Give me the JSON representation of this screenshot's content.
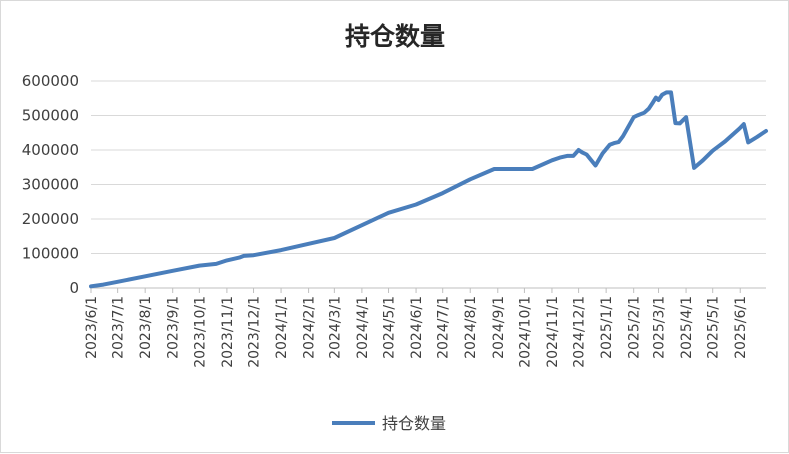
{
  "chart_data": {
    "type": "line",
    "title": "持仓数量",
    "xlabel": "",
    "ylabel": "",
    "ylim": [
      0,
      600000
    ],
    "yticks": [
      0,
      100000,
      200000,
      300000,
      400000,
      500000,
      600000
    ],
    "ytick_labels": [
      "0",
      "100000",
      "200000",
      "300000",
      "400000",
      "500000",
      "600000"
    ],
    "xtick_labels": [
      "2023/6/1",
      "2023/7/1",
      "2023/8/1",
      "2023/9/1",
      "2023/10/1",
      "2023/11/1",
      "2023/12/1",
      "2024/1/1",
      "2024/2/1",
      "2024/3/1",
      "2024/4/1",
      "2024/5/1",
      "2024/6/1",
      "2024/7/1",
      "2024/8/1",
      "2024/9/1",
      "2024/10/1",
      "2024/11/1",
      "2024/12/1",
      "2025/1/1",
      "2025/2/1",
      "2025/3/1",
      "2025/4/1",
      "2025/5/1",
      "2025/6/1"
    ],
    "x_range": [
      "2023/6/1",
      "2025/6/30"
    ],
    "grid": true,
    "legend_position": "bottom",
    "series": [
      {
        "name": "持仓数量",
        "color": "#4a7ebb",
        "x": [
          "2023/6/1",
          "2023/6/15",
          "2023/7/1",
          "2023/8/1",
          "2023/9/1",
          "2023/10/1",
          "2023/10/20",
          "2023/11/1",
          "2023/11/15",
          "2023/11/20",
          "2023/12/1",
          "2024/1/1",
          "2024/2/1",
          "2024/3/1",
          "2024/4/1",
          "2024/5/1",
          "2024/6/1",
          "2024/7/1",
          "2024/8/1",
          "2024/8/28",
          "2024/10/1",
          "2024/10/10",
          "2024/11/1",
          "2024/11/10",
          "2024/11/18",
          "2024/11/25",
          "2024/12/1",
          "2024/12/5",
          "2024/12/10",
          "2024/12/20",
          "2024/12/28",
          "2025/1/5",
          "2025/1/10",
          "2025/1/15",
          "2025/1/20",
          "2025/2/1",
          "2025/2/5",
          "2025/2/13",
          "2025/2/18",
          "2025/2/22",
          "2025/2/26",
          "2025/3/1",
          "2025/3/5",
          "2025/3/10",
          "2025/3/15",
          "2025/3/20",
          "2025/3/25",
          "2025/3/28",
          "2025/4/1",
          "2025/4/10",
          "2025/4/20",
          "2025/5/1",
          "2025/5/15",
          "2025/5/31",
          "2025/6/5",
          "2025/6/10",
          "2025/6/20",
          "2025/6/30"
        ],
        "values": [
          5000,
          10000,
          18000,
          34000,
          50000,
          65000,
          70000,
          80000,
          88000,
          93000,
          95000,
          110000,
          128000,
          145000,
          182000,
          218000,
          242000,
          275000,
          315000,
          345000,
          345000,
          345000,
          370000,
          378000,
          383000,
          383000,
          400000,
          393000,
          387000,
          355000,
          390000,
          415000,
          420000,
          423000,
          440000,
          495000,
          500000,
          508000,
          520000,
          535000,
          552000,
          545000,
          560000,
          567000,
          567000,
          478000,
          477000,
          485000,
          495000,
          348000,
          370000,
          398000,
          425000,
          462000,
          475000,
          422000,
          438000,
          455000
        ]
      }
    ]
  }
}
